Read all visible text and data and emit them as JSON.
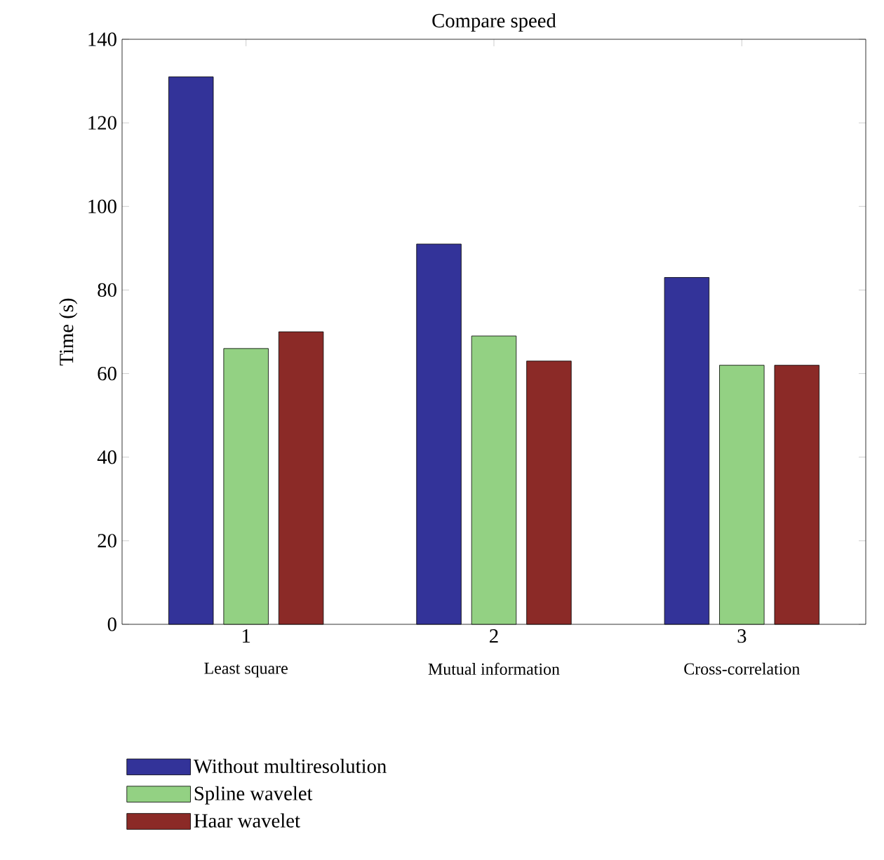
{
  "chart_data": {
    "type": "bar",
    "title": "Compare speed",
    "ylabel": "Time (s)",
    "x": [
      1,
      2,
      3
    ],
    "xlim": [
      0.5,
      3.5
    ],
    "xticks": [
      1,
      2,
      3
    ],
    "ylim": [
      0,
      140
    ],
    "yticks": [
      0,
      20,
      40,
      60,
      80,
      100,
      120,
      140
    ],
    "annotations": [
      "Least square",
      "Mutual information",
      "Cross-correlation"
    ],
    "legend": "bottom left",
    "grid": false,
    "series": [
      {
        "name": "Without multiresolution",
        "color": "#333399",
        "values": [
          131,
          91,
          83
        ]
      },
      {
        "name": "Spline wavelet",
        "color": "#93d183",
        "values": [
          66,
          69,
          62
        ]
      },
      {
        "name": "Haar wavelet",
        "color": "#8b2a27",
        "values": [
          70,
          63,
          62
        ]
      }
    ]
  }
}
